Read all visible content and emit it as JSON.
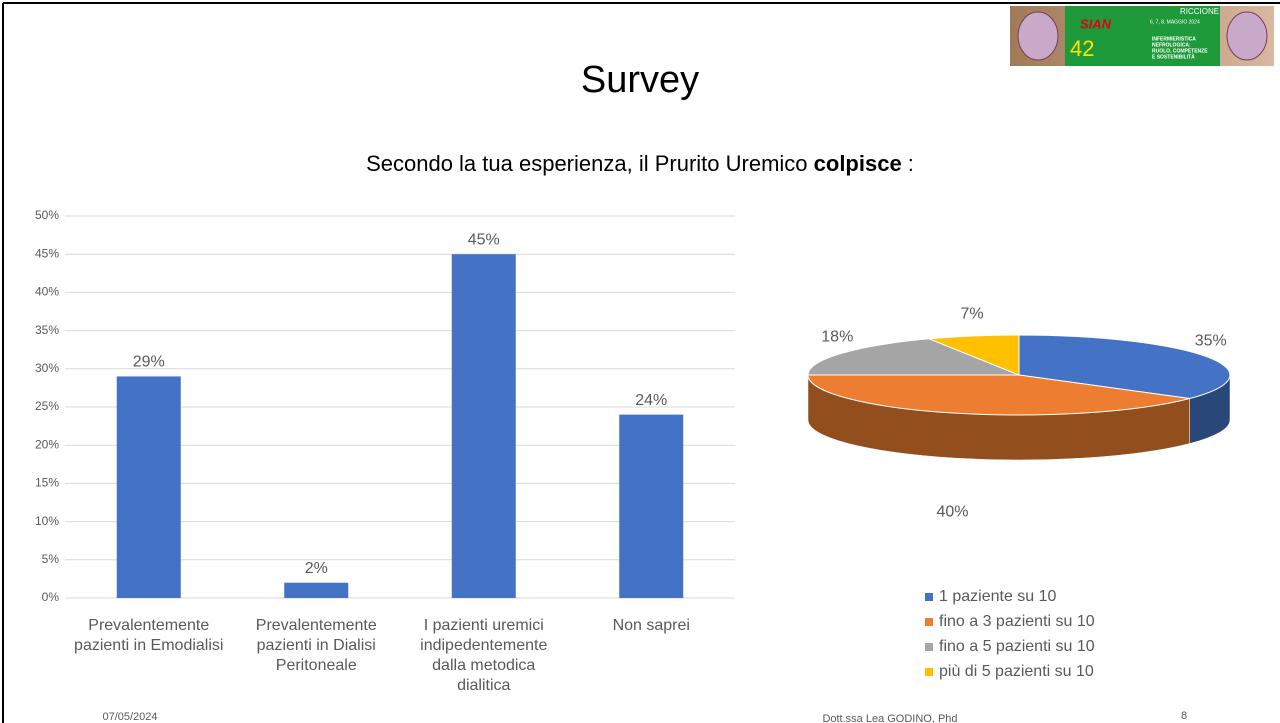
{
  "slide": {
    "title": "Survey",
    "question": [
      "Secondo la tua esperienza, il Prurito Uremico ",
      "colpisce",
      " :"
    ],
    "date": "07/05/2024",
    "author": "Dott.ssa Lea GODINO, Phd",
    "page": "8",
    "logo": {
      "event": "SIAN",
      "edition": "42",
      "place": "RICCIONE",
      "dates": "6, 7, 8, MAGGIO 2024",
      "theme": [
        "INFERMIERISTICA",
        "NEFROLOGICA:",
        "RUOLO, COMPETENZE",
        "E SOSTENIBILITÀ"
      ]
    }
  },
  "chart_data": [
    {
      "type": "bar",
      "categories": [
        "Prevalentemente pazienti in Emodialisi",
        "Prevalentemente pazienti in Dialisi Peritoneale",
        "I pazienti uremici indipedentemente dalla metodica dialitica",
        "Non saprei"
      ],
      "values": [
        29,
        2,
        45,
        24
      ],
      "value_labels": [
        "29%",
        "2%",
        "45%",
        "24%"
      ],
      "color": "#4472c4",
      "ylim": [
        0,
        50
      ],
      "yticks": [
        {
          "value": 0,
          "label": "0%"
        },
        {
          "value": 5,
          "label": "5%"
        },
        {
          "value": 10,
          "label": "10%"
        },
        {
          "value": 15,
          "label": "15%"
        },
        {
          "value": 20,
          "label": "20%"
        },
        {
          "value": 25,
          "label": "25%"
        },
        {
          "value": 30,
          "label": "30%"
        },
        {
          "value": 35,
          "label": "35%"
        },
        {
          "value": 40,
          "label": "40%"
        },
        {
          "value": 45,
          "label": "45%"
        },
        {
          "value": 50,
          "label": "50%"
        }
      ],
      "grid": true
    },
    {
      "type": "pie",
      "categories": [
        "1 paziente su 10",
        "fino a 3 pazienti su 10",
        "fino a 5 pazienti su 10",
        "più di 5 pazienti su 10"
      ],
      "values": [
        35,
        40,
        18,
        7
      ],
      "value_labels": [
        "35%",
        "40%",
        "18%",
        "7%"
      ],
      "colors": [
        "#4472c4",
        "#ed7d31",
        "#a5a5a5",
        "#ffc000"
      ],
      "legend": "bottom"
    }
  ]
}
